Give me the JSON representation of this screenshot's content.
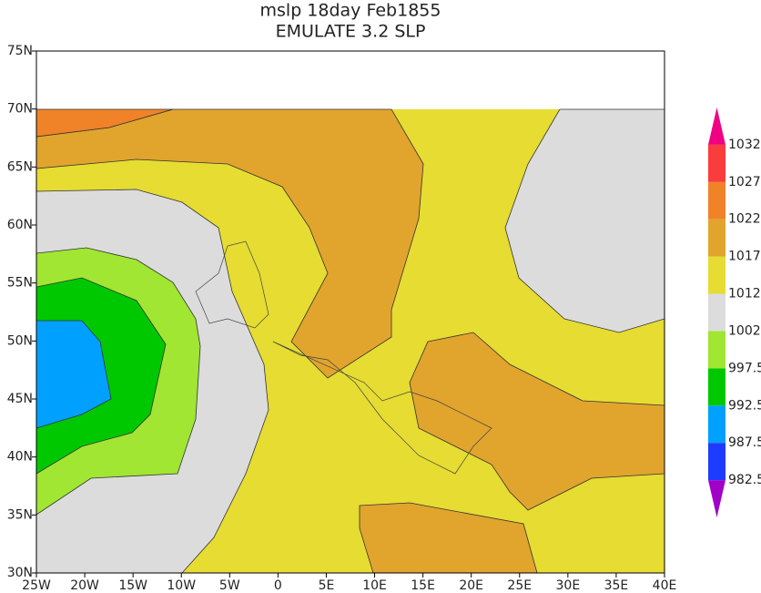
{
  "title": [
    "mslp 18day Feb1855",
    "EMULATE 3.2 SLP"
  ],
  "x_axis": {
    "labels": [
      "25W",
      "20W",
      "15W",
      "10W",
      "5W",
      "0",
      "5E",
      "10E",
      "15E",
      "20E",
      "25E",
      "30E",
      "35E",
      "40E"
    ]
  },
  "y_axis": {
    "labels": [
      "30N",
      "35N",
      "40N",
      "45N",
      "50N",
      "55N",
      "60N",
      "65N",
      "70N",
      "75N"
    ]
  },
  "colorbar": {
    "labels": [
      "982.5",
      "987.5",
      "992.5",
      "997.5",
      "1002",
      "1012",
      "1017",
      "1022",
      "1027",
      "1032"
    ],
    "colors": [
      "#a000c8",
      "#1e3cff",
      "#00a0ff",
      "#00c800",
      "#a0e632",
      "#dcdcdc",
      "#e6dc32",
      "#e1a42d",
      "#f08228",
      "#fa3c3c",
      "#f00082"
    ]
  }
}
